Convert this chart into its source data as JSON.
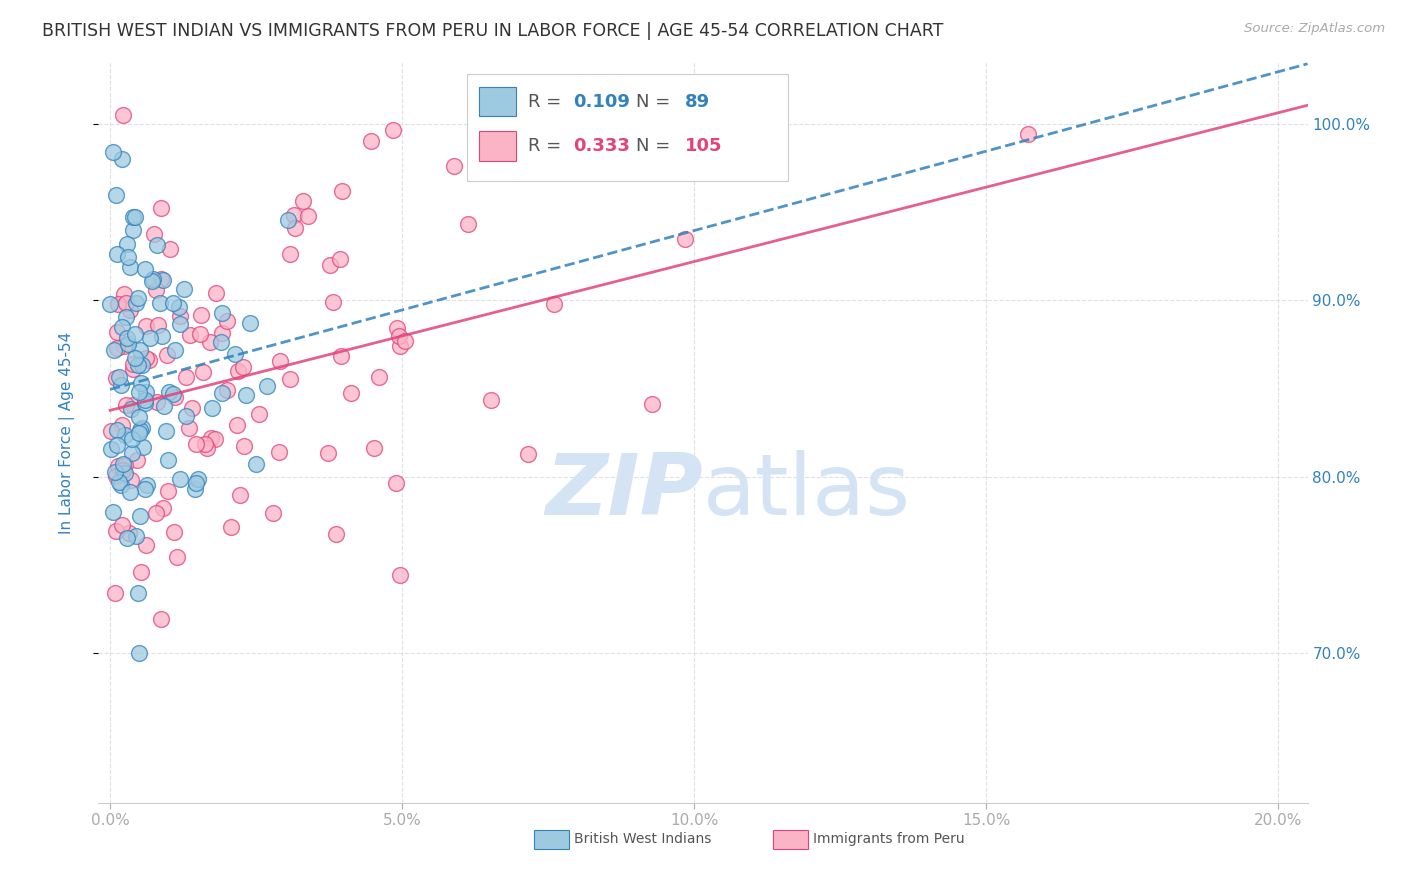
{
  "title": "BRITISH WEST INDIAN VS IMMIGRANTS FROM PERU IN LABOR FORCE | AGE 45-54 CORRELATION CHART",
  "source": "Source: ZipAtlas.com",
  "ylabel": "In Labor Force | Age 45-54",
  "x_ticks": [
    "0.0%",
    "5.0%",
    "10.0%",
    "15.0%",
    "20.0%"
  ],
  "x_tick_vals": [
    0.0,
    0.05,
    0.1,
    0.15,
    0.2
  ],
  "y_ticks_right": [
    "100.0%",
    "90.0%",
    "80.0%",
    "70.0%"
  ],
  "y_tick_vals": [
    1.0,
    0.9,
    0.8,
    0.7
  ],
  "xlim": [
    -0.002,
    0.205
  ],
  "ylim": [
    0.615,
    1.035
  ],
  "blue_R": 0.109,
  "blue_N": 89,
  "pink_R": 0.333,
  "pink_N": 105,
  "blue_label": "British West Indians",
  "pink_label": "Immigrants from Peru",
  "blue_color": "#9ecae1",
  "pink_color": "#fbb4c6",
  "blue_edge_color": "#3182bd",
  "pink_edge_color": "#e2437a",
  "blue_line_color": "#3182bd",
  "pink_line_color": "#e2437a",
  "title_color": "#333333",
  "source_color": "#aaaaaa",
  "axis_label_color": "#3182bd",
  "tick_color_right": "#3182bd",
  "tick_color_bottom": "#aaaaaa",
  "watermark_zip": "ZIP",
  "watermark_atlas": "atlas",
  "watermark_color": "#d4e4f5",
  "background_color": "#ffffff",
  "grid_color": "#dddddd",
  "legend_blue_text_color": "#3182bd",
  "legend_pink_text_color": "#e2437a",
  "legend_label_color": "#555555"
}
